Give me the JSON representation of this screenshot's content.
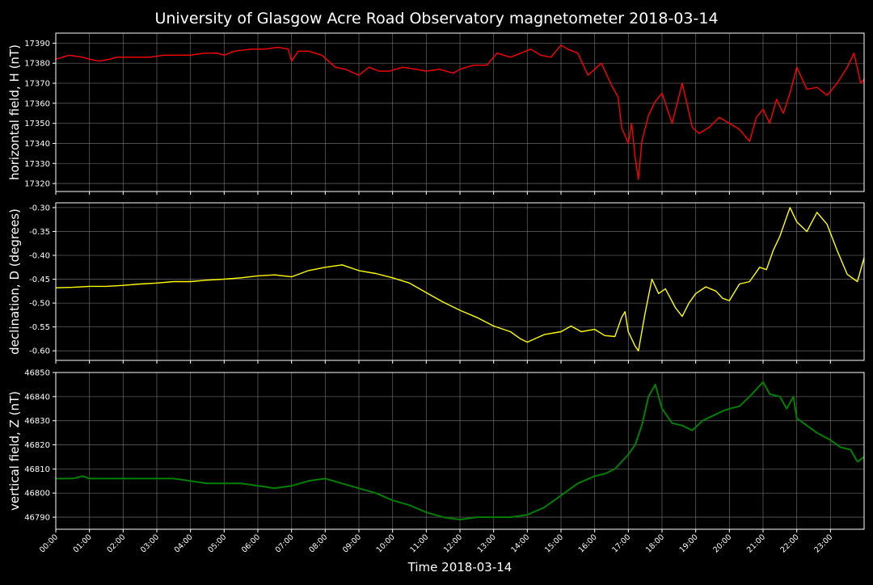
{
  "title": "University of Glasgow Acre Road Observatory magnetometer 2018-03-14",
  "colors": {
    "background": "#000000",
    "axes": "#ffffff",
    "grid": "#808080"
  },
  "chart_data": [
    {
      "type": "line",
      "ylabel": "horizontal field, H (nT)",
      "ylim": [
        17316,
        17395
      ],
      "yticks": [
        17320,
        17330,
        17340,
        17350,
        17360,
        17370,
        17380,
        17390
      ],
      "series": [
        {
          "color": "#ff0000",
          "x": [
            0.0,
            0.4,
            0.8,
            1.0,
            1.3,
            1.6,
            1.8,
            2.0,
            2.4,
            2.8,
            3.2,
            3.6,
            4.0,
            4.4,
            4.8,
            5.0,
            5.3,
            5.8,
            6.2,
            6.6,
            6.9,
            7.0,
            7.2,
            7.5,
            7.9,
            8.3,
            8.6,
            9.0,
            9.3,
            9.6,
            9.9,
            10.3,
            10.7,
            11.0,
            11.4,
            11.8,
            12.0,
            12.4,
            12.8,
            13.1,
            13.5,
            13.8,
            14.1,
            14.4,
            14.7,
            15.0,
            15.2,
            15.5,
            15.8,
            16.0,
            16.2,
            16.5,
            16.7,
            16.8,
            17.0,
            17.1,
            17.2,
            17.3,
            17.4,
            17.6,
            17.8,
            18.0,
            18.3,
            18.6,
            18.9,
            19.1,
            19.4,
            19.7,
            20.0,
            20.3,
            20.6,
            20.8,
            21.0,
            21.2,
            21.4,
            21.6,
            21.8,
            22.0,
            22.3,
            22.6,
            22.9,
            23.2,
            23.5,
            23.7,
            23.9,
            24.0
          ],
          "values": [
            17382,
            17384,
            17383,
            17382,
            17381,
            17382,
            17383,
            17383,
            17383,
            17383,
            17384,
            17384,
            17384,
            17385,
            17385,
            17384,
            17386,
            17387,
            17387,
            17388,
            17387,
            17381,
            17386,
            17386,
            17384,
            17378,
            17377,
            17374,
            17378,
            17376,
            17376,
            17378,
            17377,
            17376,
            17377,
            17375,
            17377,
            17379,
            17379,
            17385,
            17383,
            17385,
            17387,
            17384,
            17383,
            17389,
            17387,
            17385,
            17374,
            17377,
            17380,
            17369,
            17363,
            17348,
            17340,
            17350,
            17333,
            17322,
            17341,
            17354,
            17361,
            17365,
            17350,
            17370,
            17348,
            17345,
            17348,
            17353,
            17350,
            17347,
            17341,
            17353,
            17357,
            17350,
            17362,
            17355,
            17365,
            17378,
            17367,
            17368,
            17364,
            17370,
            17378,
            17385,
            17370,
            17372
          ]
        }
      ]
    },
    {
      "type": "line",
      "ylabel": "declination, D (degrees)",
      "ylim": [
        -0.62,
        -0.29
      ],
      "yticks": [
        -0.6,
        -0.55,
        -0.5,
        -0.45,
        -0.4,
        -0.35,
        -0.3
      ],
      "yticklabels": [
        "-0.60",
        "-0.55",
        "-0.50",
        "-0.45",
        "-0.40",
        "-0.35",
        "-0.30"
      ],
      "series": [
        {
          "color": "#ffff00",
          "x": [
            0.0,
            0.5,
            1.0,
            1.5,
            2.0,
            2.5,
            3.0,
            3.5,
            4.0,
            4.5,
            5.0,
            5.5,
            6.0,
            6.5,
            7.0,
            7.5,
            8.0,
            8.5,
            9.0,
            9.5,
            10.0,
            10.5,
            11.0,
            11.5,
            12.0,
            12.5,
            13.0,
            13.5,
            13.8,
            14.0,
            14.5,
            15.0,
            15.3,
            15.6,
            16.0,
            16.3,
            16.6,
            16.8,
            16.9,
            17.0,
            17.2,
            17.3,
            17.5,
            17.7,
            17.9,
            18.1,
            18.4,
            18.6,
            18.8,
            19.0,
            19.3,
            19.6,
            19.8,
            20.0,
            20.3,
            20.6,
            20.9,
            21.1,
            21.3,
            21.5,
            21.8,
            22.0,
            22.3,
            22.6,
            22.9,
            23.2,
            23.5,
            23.8,
            24.0
          ],
          "values": [
            -0.468,
            -0.467,
            -0.465,
            -0.465,
            -0.463,
            -0.46,
            -0.458,
            -0.455,
            -0.455,
            -0.452,
            -0.45,
            -0.447,
            -0.443,
            -0.441,
            -0.445,
            -0.432,
            -0.425,
            -0.42,
            -0.432,
            -0.438,
            -0.447,
            -0.458,
            -0.478,
            -0.498,
            -0.515,
            -0.53,
            -0.548,
            -0.56,
            -0.575,
            -0.582,
            -0.566,
            -0.56,
            -0.548,
            -0.56,
            -0.555,
            -0.568,
            -0.57,
            -0.53,
            -0.518,
            -0.56,
            -0.59,
            -0.6,
            -0.52,
            -0.45,
            -0.48,
            -0.47,
            -0.51,
            -0.528,
            -0.5,
            -0.48,
            -0.466,
            -0.475,
            -0.49,
            -0.495,
            -0.46,
            -0.455,
            -0.425,
            -0.43,
            -0.39,
            -0.36,
            -0.3,
            -0.33,
            -0.35,
            -0.31,
            -0.335,
            -0.39,
            -0.44,
            -0.455,
            -0.405
          ]
        }
      ]
    },
    {
      "type": "line",
      "ylabel": "vertical field, Z (nT)",
      "ylim": [
        46785,
        46850
      ],
      "yticks": [
        46790,
        46800,
        46810,
        46820,
        46830,
        46840,
        46850
      ],
      "series": [
        {
          "color": "#008000",
          "x": [
            0.0,
            0.5,
            0.8,
            1.0,
            1.5,
            2.0,
            2.5,
            3.0,
            3.5,
            4.0,
            4.5,
            5.0,
            5.5,
            6.0,
            6.5,
            7.0,
            7.5,
            8.0,
            8.5,
            9.0,
            9.5,
            10.0,
            10.5,
            11.0,
            11.5,
            12.0,
            12.5,
            13.0,
            13.5,
            14.0,
            14.5,
            15.0,
            15.5,
            16.0,
            16.3,
            16.6,
            17.0,
            17.2,
            17.4,
            17.6,
            17.8,
            18.0,
            18.3,
            18.6,
            18.9,
            19.2,
            19.5,
            19.8,
            20.0,
            20.3,
            20.6,
            21.0,
            21.2,
            21.5,
            21.7,
            21.9,
            22.0,
            22.3,
            22.6,
            23.0,
            23.3,
            23.6,
            23.8,
            24.0
          ],
          "values": [
            46806,
            46806,
            46807,
            46806,
            46806,
            46806,
            46806,
            46806,
            46806,
            46805,
            46804,
            46804,
            46804,
            46803,
            46802,
            46803,
            46805,
            46806,
            46804,
            46802,
            46800,
            46797,
            46795,
            46792,
            46790,
            46789,
            46790,
            46790,
            46790,
            46791,
            46794,
            46799,
            46804,
            46807,
            46808,
            46810,
            46816,
            46820,
            46828,
            46840,
            46845,
            46835,
            46829,
            46828,
            46826,
            46830,
            46832,
            46834,
            46835,
            46836,
            46840,
            46846,
            46841,
            46840,
            46835,
            46840,
            46831,
            46828,
            46825,
            46822,
            46819,
            46818,
            46813,
            46815
          ]
        }
      ]
    }
  ],
  "x_axis": {
    "label": "Time 2018-03-14",
    "xlim": [
      0,
      24
    ],
    "ticks": [
      "00:00",
      "01:00",
      "02:00",
      "03:00",
      "04:00",
      "05:00",
      "06:00",
      "07:00",
      "08:00",
      "09:00",
      "10:00",
      "11:00",
      "12:00",
      "13:00",
      "14:00",
      "15:00",
      "16:00",
      "17:00",
      "18:00",
      "19:00",
      "20:00",
      "21:00",
      "22:00",
      "23:00"
    ]
  }
}
